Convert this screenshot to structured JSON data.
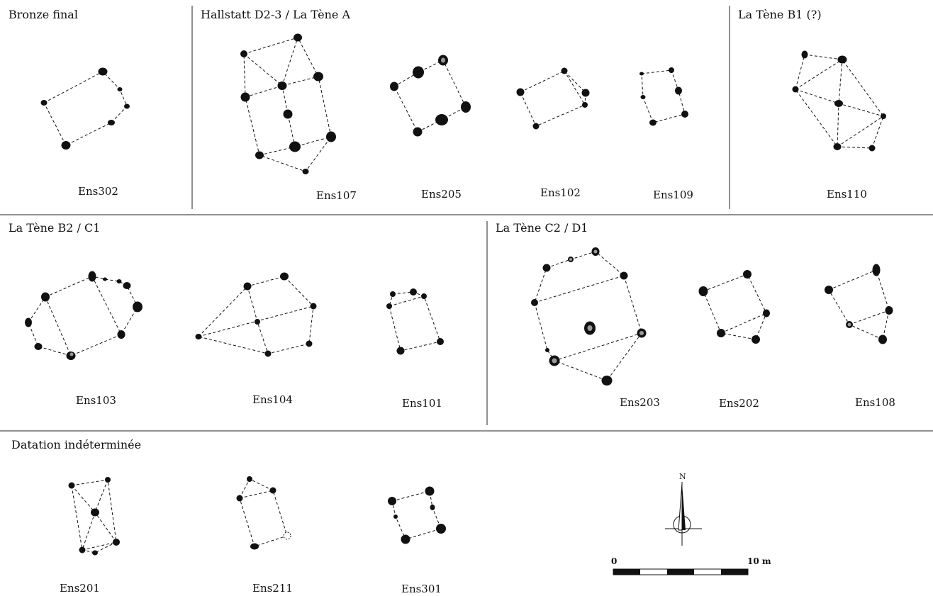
{
  "periods": {
    "bronze_final": "Bronze final",
    "hallstatt": "Hallstatt D2-3 / La Tène A",
    "la_tene_b1": "La Tène B1 (?)",
    "la_tene_b2_c1": "La Tène B2 / C1",
    "la_tene_c2_d1": "La Tène C2 / D1",
    "indeterminee": "Datation indéterminée"
  },
  "structures": {
    "ens302": "Ens302",
    "ens107": "Ens107",
    "ens205": "Ens205",
    "ens102": "Ens102",
    "ens109": "Ens109",
    "ens110": "Ens110",
    "ens103": "Ens103",
    "ens104": "Ens104",
    "ens101": "Ens101",
    "ens203": "Ens203",
    "ens202": "Ens202",
    "ens108": "Ens108",
    "ens201": "Ens201",
    "ens211": "Ens211",
    "ens301": "Ens301"
  },
  "north_arrow": {
    "label": "N",
    "icon": "north-arrow-icon"
  },
  "scale_bar": {
    "start_label": "0",
    "end_label": "10 m"
  },
  "colors": {
    "post_hole": "#111111",
    "post_hole_fill_grey": "#9a9a9a",
    "line": "#111111"
  }
}
